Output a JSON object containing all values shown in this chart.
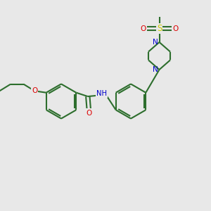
{
  "bg_color": "#e8e8e8",
  "bond_color": "#2d6e2d",
  "N_color": "#0000cd",
  "O_color": "#dd0000",
  "S_color": "#cccc00",
  "linewidth": 1.5,
  "figsize": [
    3.0,
    3.0
  ],
  "dpi": 100,
  "xlim": [
    0,
    10
  ],
  "ylim": [
    0,
    10
  ]
}
